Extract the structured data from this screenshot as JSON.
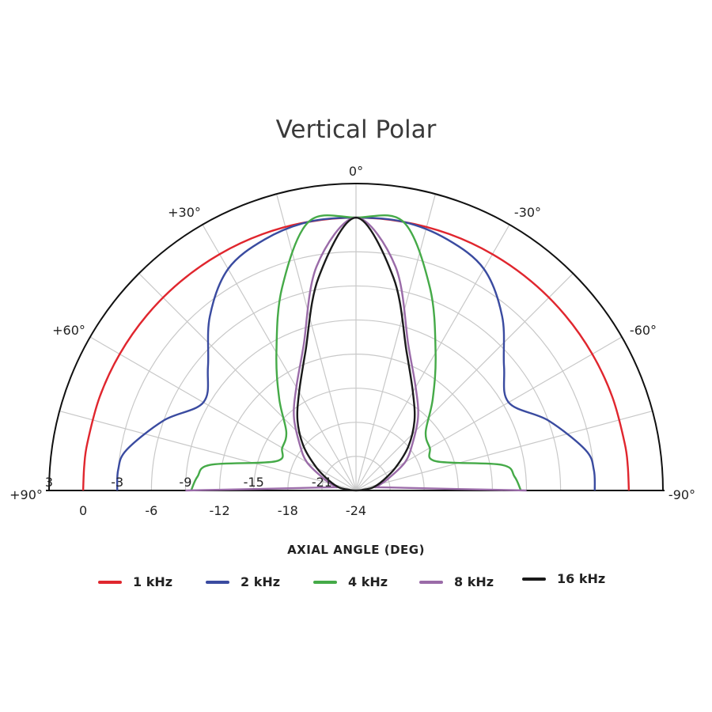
{
  "chart_data": {
    "type": "polar",
    "title": "Vertical Polar",
    "xlabel": "AXIAL ANGLE (DEG)",
    "angle_labels": [
      "0°",
      "+30°",
      "-30°",
      "+60°",
      "-60°",
      "+90°",
      "-90°"
    ],
    "radial_ticks": [
      0,
      -6,
      -12,
      -18,
      -24
    ],
    "left_radial_labels": [
      "3",
      "-3",
      "-9",
      "-15",
      "-21"
    ],
    "radial_range": [
      -24,
      3
    ],
    "angle_range": [
      -90,
      90
    ],
    "angles": [
      0,
      10,
      20,
      30,
      40,
      50,
      60,
      70,
      80,
      85,
      90
    ],
    "series": [
      {
        "name": "1 kHz",
        "color": "#e0262e",
        "values": [
          0,
          0,
          0,
          0,
          0,
          0,
          0,
          0,
          0,
          0,
          0
        ]
      },
      {
        "name": "2 kHz",
        "color": "#3a4ba0",
        "values": [
          0,
          0,
          -0.5,
          -1.5,
          -4,
          -7,
          -8.5,
          -6,
          -3.5,
          -3,
          -3
        ]
      },
      {
        "name": "4 kHz",
        "color": "#45aa48",
        "values": [
          0,
          0,
          -5,
          -10,
          -13.5,
          -16,
          -16.5,
          -16.5,
          -11,
          -10,
          -9.5
        ]
      },
      {
        "name": "8 kHz",
        "color": "#9a6ba8",
        "values": [
          0,
          -4,
          -10.5,
          -13.5,
          -15.5,
          -17.5,
          -19,
          -21,
          -22,
          -21,
          -9
        ]
      },
      {
        "name": "16 kHz",
        "color": "#1a1a1a",
        "values": [
          0,
          -5,
          -11,
          -14,
          -16,
          -18,
          -20,
          -21.5,
          -22.5,
          -23.5,
          -24
        ]
      }
    ]
  }
}
